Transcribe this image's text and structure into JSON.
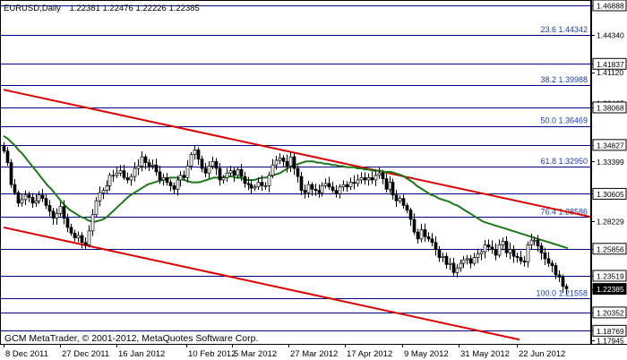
{
  "header": {
    "symbol": "EURUSD,Daily",
    "ohlc": "1.22381 1.22476 1.22226 1.22385"
  },
  "footer": {
    "copyright": "GCM MetaTrader, © 2001-2012, MetaQuotes Software Corp."
  },
  "colors": {
    "background": "#ffffff",
    "grid": "#000080",
    "fib_text": "#1e3fa0",
    "candles": "#000000",
    "moving_average": "#1a7a1a",
    "trendlines": "#dd0000",
    "axis_text": "#000000"
  },
  "chart_data": {
    "type": "candlestick",
    "ylim": [
      1.17945,
      1.46888
    ],
    "date_labels": [
      "8 Dec 2011",
      "27 Dec 2011",
      "16 Jan 2012",
      "10 Feb 2012",
      "5 Mar 2012",
      "27 Mar 2012",
      "17 Apr 2012",
      "9 May 2012",
      "31 May 2012",
      "22 Jun 2012"
    ],
    "price_labels": [
      {
        "text": "1.46888",
        "value": 1.46888,
        "boxed": true
      },
      {
        "text": "1.44340",
        "value": 1.4434,
        "boxed": false
      },
      {
        "text": "1.41837",
        "value": 1.41837,
        "boxed": true
      },
      {
        "text": "1.41120",
        "value": 1.4112,
        "boxed": false
      },
      {
        "text": "1.38465",
        "value": 1.38465,
        "boxed": false
      },
      {
        "text": "1.38068",
        "value": 1.38068,
        "boxed": true
      },
      {
        "text": "1.34827",
        "value": 1.34827,
        "boxed": true
      },
      {
        "text": "1.33399",
        "value": 1.33399,
        "boxed": false
      },
      {
        "text": "1.30605",
        "value": 1.30605,
        "boxed": true
      },
      {
        "text": "1.28229",
        "value": 1.28229,
        "boxed": false
      },
      {
        "text": "1.25856",
        "value": 1.25856,
        "boxed": true
      },
      {
        "text": "1.23519",
        "value": 1.23519,
        "boxed": true
      },
      {
        "text": "1.22385",
        "value": 1.22385,
        "boxed": true,
        "current": true
      },
      {
        "text": "1.20352",
        "value": 1.20352,
        "boxed": true
      },
      {
        "text": "1.18769",
        "value": 1.18769,
        "boxed": true
      },
      {
        "text": "1.17945",
        "value": 1.17945,
        "boxed": false
      }
    ],
    "horizontal_levels": [
      1.46888,
      1.44342,
      1.41837,
      1.39988,
      1.38068,
      1.36469,
      1.34827,
      1.3295,
      1.30605,
      1.28586,
      1.25856,
      1.23519,
      1.21558,
      1.20352,
      1.18769
    ],
    "fibonacci_levels": [
      {
        "label": "23.6 1.44342",
        "price": 1.44342
      },
      {
        "label": "38.2 1.39988",
        "price": 1.39988
      },
      {
        "label": "50.0 1.36469",
        "price": 1.36469
      },
      {
        "label": "61.8 1.32950",
        "price": 1.3295
      },
      {
        "label": "76.4 1.28586",
        "price": 1.28586
      },
      {
        "label": "100.0 1.21558",
        "price": 1.21558
      }
    ],
    "trendlines": [
      {
        "from": {
          "date": "8 Dec 2011",
          "price": 1.396
        },
        "to": {
          "date": "29 Jun 2012",
          "price": 1.286
        }
      },
      {
        "from": {
          "date": "8 Dec 2011",
          "price": 1.277
        },
        "to": {
          "date": "27 Jun 2012",
          "price": 1.18
        }
      }
    ],
    "close_path": [
      1.343,
      1.333,
      1.314,
      1.307,
      1.298,
      1.301,
      1.305,
      1.303,
      1.298,
      1.3,
      1.305,
      1.302,
      1.296,
      1.291,
      1.285,
      1.289,
      1.295,
      1.285,
      1.277,
      1.272,
      1.268,
      1.27,
      1.264,
      1.262,
      1.274,
      1.288,
      1.3,
      1.307,
      1.309,
      1.313,
      1.322,
      1.322,
      1.324,
      1.326,
      1.32,
      1.318,
      1.321,
      1.328,
      1.33,
      1.338,
      1.333,
      1.33,
      1.331,
      1.325,
      1.318,
      1.32,
      1.316,
      1.313,
      1.31,
      1.318,
      1.322,
      1.32,
      1.33,
      1.34,
      1.344,
      1.336,
      1.328,
      1.324,
      1.33,
      1.334,
      1.328,
      1.318,
      1.32,
      1.324,
      1.326,
      1.322,
      1.327,
      1.321,
      1.315,
      1.314,
      1.311,
      1.312,
      1.316,
      1.313,
      1.313,
      1.322,
      1.331,
      1.335,
      1.337,
      1.334,
      1.33,
      1.338,
      1.328,
      1.321,
      1.309,
      1.307,
      1.314,
      1.31,
      1.309,
      1.307,
      1.313,
      1.315,
      1.312,
      1.309,
      1.306,
      1.312,
      1.314,
      1.312,
      1.316,
      1.315,
      1.318,
      1.32,
      1.318,
      1.32,
      1.318,
      1.322,
      1.324,
      1.319,
      1.31,
      1.316,
      1.305,
      1.3,
      1.302,
      1.296,
      1.292,
      1.284,
      1.273,
      1.267,
      1.275,
      1.269,
      1.267,
      1.264,
      1.258,
      1.251,
      1.252,
      1.245,
      1.246,
      1.238,
      1.242,
      1.246,
      1.249,
      1.25,
      1.246,
      1.251,
      1.254,
      1.256,
      1.262,
      1.26,
      1.258,
      1.253,
      1.262,
      1.265,
      1.255,
      1.258,
      1.252,
      1.251,
      1.248,
      1.247,
      1.262,
      1.266,
      1.266,
      1.261,
      1.255,
      1.25,
      1.246,
      1.244,
      1.236,
      1.234,
      1.226,
      1.224
    ],
    "moving_average": [
      1.356,
      1.354,
      1.351,
      1.348,
      1.344,
      1.341,
      1.337,
      1.333,
      1.329,
      1.325,
      1.321,
      1.317,
      1.313,
      1.31,
      1.306,
      1.302,
      1.298,
      1.295,
      1.292,
      1.29,
      1.288,
      1.286,
      1.285,
      1.283,
      1.282,
      1.282,
      1.283,
      1.284,
      1.286,
      1.289,
      1.292,
      1.295,
      1.298,
      1.301,
      1.304,
      1.306,
      1.308,
      1.31,
      1.312,
      1.314,
      1.315,
      1.316,
      1.317,
      1.318,
      1.319,
      1.32,
      1.32,
      1.32,
      1.319,
      1.318,
      1.317,
      1.316,
      1.316,
      1.316,
      1.317,
      1.318,
      1.319,
      1.32,
      1.32,
      1.32,
      1.321,
      1.321,
      1.321,
      1.32,
      1.32,
      1.319,
      1.318,
      1.318,
      1.318,
      1.319,
      1.32,
      1.32,
      1.321,
      1.322,
      1.323,
      1.324,
      1.326,
      1.328,
      1.33,
      1.331,
      1.332,
      1.333,
      1.334,
      1.334,
      1.334,
      1.333,
      1.333,
      1.332,
      1.332,
      1.331,
      1.331,
      1.33,
      1.33,
      1.329,
      1.329,
      1.329,
      1.328,
      1.328,
      1.327,
      1.327,
      1.326,
      1.326,
      1.326,
      1.325,
      1.325,
      1.325,
      1.324,
      1.323,
      1.322,
      1.32,
      1.318,
      1.316,
      1.313,
      1.311,
      1.309,
      1.307,
      1.305,
      1.304,
      1.302,
      1.301,
      1.3,
      1.299,
      1.297,
      1.296,
      1.294,
      1.292,
      1.29,
      1.288,
      1.286,
      1.284,
      1.282,
      1.281,
      1.28,
      1.279,
      1.278,
      1.277,
      1.276,
      1.275,
      1.274,
      1.273,
      1.272,
      1.271,
      1.27,
      1.269,
      1.268,
      1.267,
      1.266,
      1.265,
      1.264,
      1.263,
      1.262,
      1.261,
      1.26,
      1.259
    ]
  }
}
